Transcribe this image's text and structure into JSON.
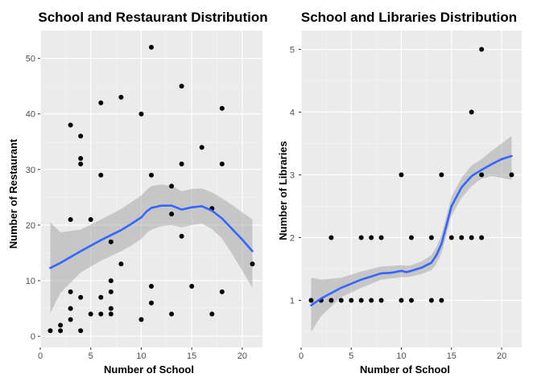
{
  "chart_data": [
    {
      "type": "scatter",
      "title": "School and Restaurant Distribution",
      "xlabel": "Number of School",
      "ylabel": "Number of Restaurant",
      "xlim": [
        0,
        22
      ],
      "ylim": [
        -2,
        55
      ],
      "xticks": [
        0,
        5,
        10,
        15,
        20
      ],
      "yticks": [
        0,
        10,
        20,
        30,
        40,
        50
      ],
      "grid": true,
      "background": "#ebebeb",
      "point_color": "#000000",
      "smooth_color": "#3366ff",
      "ribbon_color": "#999999",
      "points": [
        [
          1,
          1
        ],
        [
          2,
          1
        ],
        [
          2,
          2
        ],
        [
          3,
          3
        ],
        [
          3,
          5
        ],
        [
          3,
          8
        ],
        [
          3,
          21
        ],
        [
          3,
          38
        ],
        [
          4,
          1
        ],
        [
          4,
          7
        ],
        [
          4,
          31
        ],
        [
          4,
          32
        ],
        [
          4,
          36
        ],
        [
          5,
          4
        ],
        [
          5,
          21
        ],
        [
          6,
          4
        ],
        [
          6,
          7
        ],
        [
          6,
          29
        ],
        [
          6,
          42
        ],
        [
          7,
          4
        ],
        [
          7,
          5
        ],
        [
          7,
          8
        ],
        [
          7,
          10
        ],
        [
          7,
          17
        ],
        [
          8,
          13
        ],
        [
          8,
          43
        ],
        [
          10,
          3
        ],
        [
          10,
          40
        ],
        [
          11,
          6
        ],
        [
          11,
          9
        ],
        [
          11,
          29
        ],
        [
          11,
          52
        ],
        [
          13,
          4
        ],
        [
          13,
          22
        ],
        [
          13,
          27
        ],
        [
          14,
          18
        ],
        [
          14,
          31
        ],
        [
          14,
          45
        ],
        [
          15,
          9
        ],
        [
          16,
          34
        ],
        [
          17,
          4
        ],
        [
          17,
          23
        ],
        [
          18,
          8
        ],
        [
          18,
          31
        ],
        [
          18,
          41
        ],
        [
          21,
          13
        ]
      ],
      "smooth": {
        "x": [
          1,
          2,
          4,
          6,
          8,
          9,
          10,
          10.5,
          11,
          12,
          13,
          14,
          15,
          16,
          17,
          18,
          19,
          20,
          21
        ],
        "y": [
          12.3,
          13.2,
          15.3,
          17.3,
          19.1,
          20.2,
          21.4,
          22.4,
          23.1,
          23.5,
          23.5,
          22.8,
          23.2,
          23.4,
          22.6,
          21.2,
          19.3,
          17.4,
          15.3
        ],
        "lower": [
          4.2,
          7.8,
          11.5,
          13.6,
          15.3,
          16.3,
          17.5,
          18.5,
          19.2,
          19.8,
          20.0,
          19.6,
          20.0,
          20.3,
          19.3,
          17.6,
          14.8,
          11.8,
          8.7
        ],
        "upper": [
          20.5,
          18.7,
          19.2,
          21.0,
          22.9,
          24.1,
          25.3,
          26.3,
          27.0,
          27.3,
          27.1,
          26.1,
          26.5,
          26.6,
          25.9,
          24.8,
          23.6,
          22.3,
          21.0
        ]
      }
    },
    {
      "type": "scatter",
      "title": "School and Libraries Distribution",
      "xlabel": "Number of School",
      "ylabel": "Number of Libraries",
      "xlim": [
        0,
        22
      ],
      "ylim": [
        0.25,
        5.3
      ],
      "xticks": [
        0,
        5,
        10,
        15,
        20
      ],
      "yticks": [
        1,
        2,
        3,
        4,
        5
      ],
      "grid": true,
      "background": "#ebebeb",
      "point_color": "#000000",
      "smooth_color": "#3366ff",
      "ribbon_color": "#999999",
      "points": [
        [
          1,
          1
        ],
        [
          2,
          1
        ],
        [
          3,
          1
        ],
        [
          3,
          2
        ],
        [
          4,
          1
        ],
        [
          5,
          1
        ],
        [
          6,
          1
        ],
        [
          6,
          2
        ],
        [
          7,
          1
        ],
        [
          7,
          2
        ],
        [
          8,
          1
        ],
        [
          8,
          2
        ],
        [
          10,
          1
        ],
        [
          10,
          3
        ],
        [
          11,
          1
        ],
        [
          11,
          2
        ],
        [
          13,
          1
        ],
        [
          13,
          2
        ],
        [
          14,
          1
        ],
        [
          14,
          3
        ],
        [
          15,
          2
        ],
        [
          16,
          2
        ],
        [
          17,
          2
        ],
        [
          17,
          4
        ],
        [
          18,
          2
        ],
        [
          18,
          3
        ],
        [
          18,
          5
        ],
        [
          21,
          3
        ]
      ],
      "smooth": {
        "x": [
          1,
          2,
          4,
          6,
          8,
          9,
          10,
          10.5,
          11,
          12,
          13,
          13.5,
          14,
          14.5,
          15,
          16,
          17,
          18,
          19,
          20,
          21
        ],
        "y": [
          0.92,
          1.03,
          1.2,
          1.33,
          1.43,
          1.44,
          1.47,
          1.45,
          1.47,
          1.52,
          1.6,
          1.72,
          1.9,
          2.2,
          2.5,
          2.8,
          2.98,
          3.08,
          3.17,
          3.25,
          3.3
        ],
        "lower": [
          0.5,
          0.75,
          1.05,
          1.2,
          1.33,
          1.35,
          1.37,
          1.37,
          1.38,
          1.42,
          1.48,
          1.58,
          1.75,
          2.05,
          2.35,
          2.63,
          2.82,
          2.94,
          2.98,
          2.95,
          2.92
        ],
        "upper": [
          1.36,
          1.33,
          1.36,
          1.46,
          1.54,
          1.55,
          1.56,
          1.55,
          1.56,
          1.62,
          1.72,
          1.85,
          2.05,
          2.35,
          2.65,
          2.95,
          3.15,
          3.25,
          3.38,
          3.5,
          3.62
        ]
      }
    }
  ]
}
